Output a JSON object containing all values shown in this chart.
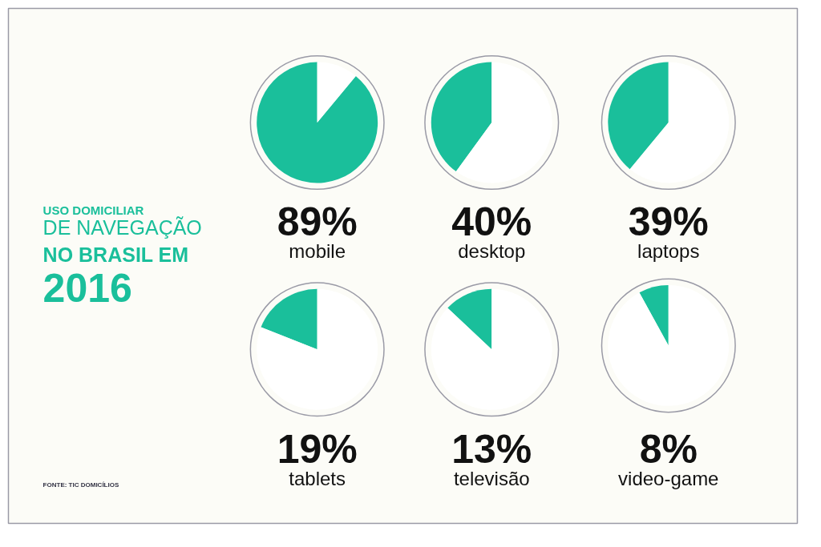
{
  "chart_data": [
    {
      "type": "other",
      "title": "USO DOMICILIAR\nDE NAVEGAÇÃO\nNO BRASIL EM\n2016",
      "annotations": [
        "FONTE: TIC DOMICÍLIOS"
      ]
    },
    {
      "type": "pie",
      "title": "89%",
      "subtitle": "mobile",
      "categories": [
        null,
        null
      ],
      "values": [
        89,
        11
      ],
      "colors": [
        "#1abf9b",
        "#ffffff"
      ]
    },
    {
      "type": "pie",
      "title": "40%",
      "subtitle": "desktop",
      "categories": [
        null,
        null
      ],
      "values": [
        40,
        60
      ],
      "colors": [
        "#1abf9b",
        "#ffffff"
      ]
    },
    {
      "type": "pie",
      "title": "39%",
      "subtitle": "laptops",
      "categories": [
        null,
        null
      ],
      "values": [
        39,
        61
      ],
      "colors": [
        "#1abf9b",
        "#ffffff"
      ]
    },
    {
      "type": "pie",
      "title": "19%",
      "subtitle": "tablets",
      "categories": [
        null,
        null
      ],
      "values": [
        19,
        81
      ],
      "colors": [
        "#1abf9b",
        "#ffffff"
      ]
    },
    {
      "type": "pie",
      "title": "13%",
      "subtitle": "televisão",
      "categories": [
        null,
        null
      ],
      "values": [
        13,
        87
      ],
      "colors": [
        "#1abf9b",
        "#ffffff"
      ]
    },
    {
      "type": "pie",
      "title": "8%",
      "subtitle": "video-game",
      "categories": [
        null,
        null
      ],
      "values": [
        8,
        92
      ],
      "colors": [
        "#1abf9b",
        "#ffffff"
      ]
    }
  ]
}
